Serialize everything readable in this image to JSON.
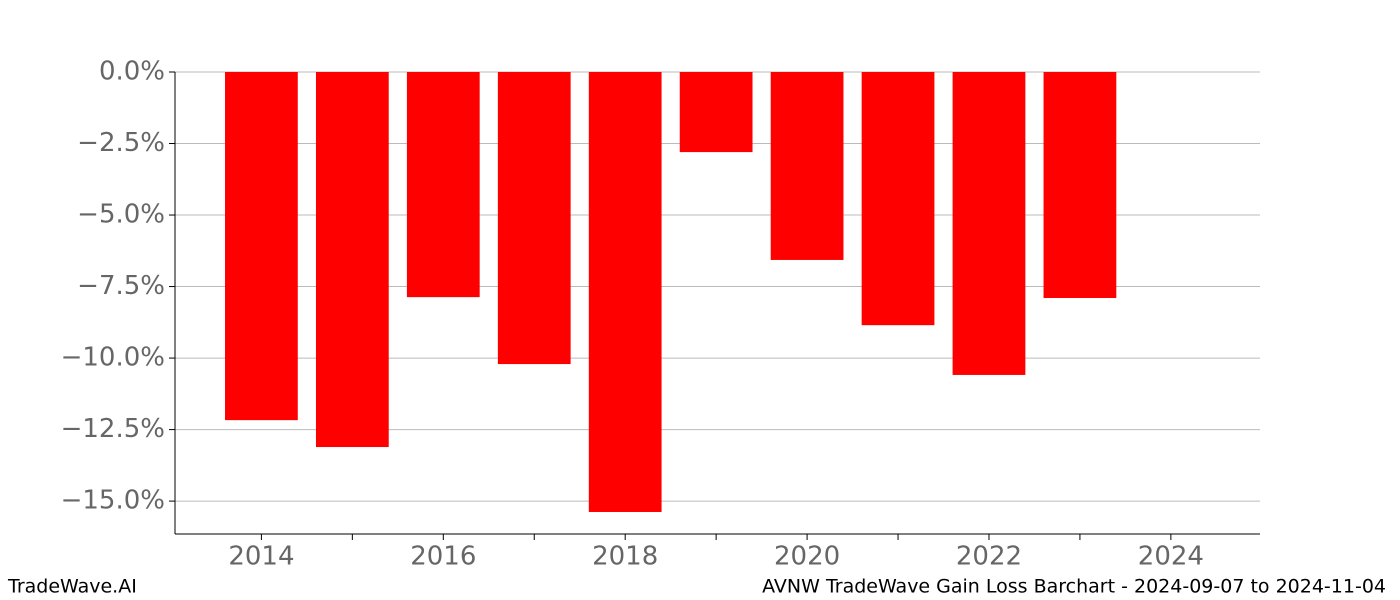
{
  "chart_data": {
    "type": "bar",
    "title": "AVNW TradeWave Gain Loss Barchart - 2024-09-07 to 2024-11-04",
    "watermark": "TradeWave.AI",
    "x": [
      2014,
      2015,
      2016,
      2017,
      2018,
      2019,
      2020,
      2021,
      2022,
      2023
    ],
    "values": [
      -12.17,
      -13.11,
      -7.87,
      -10.21,
      -15.38,
      -2.8,
      -6.57,
      -8.85,
      -10.59,
      -7.9
    ],
    "color": "#ff0000",
    "xlim": [
      2013.05,
      2024.98
    ],
    "xticks": [
      2014,
      2016,
      2018,
      2020,
      2022,
      2024
    ],
    "xminorticks": [
      2015,
      2017,
      2019,
      2021,
      2023
    ],
    "ylim": [
      -16.15,
      0
    ],
    "yticks": [
      {
        "value": 0,
        "label": "0.0%"
      },
      {
        "value": -2.5,
        "label": "−2.5%"
      },
      {
        "value": -5,
        "label": "−5.0%"
      },
      {
        "value": -7.5,
        "label": "−7.5%"
      },
      {
        "value": -10,
        "label": "−10.0%"
      },
      {
        "value": -12.5,
        "label": "−12.5%"
      },
      {
        "value": -15,
        "label": "−15.0%"
      }
    ],
    "grid": true
  }
}
